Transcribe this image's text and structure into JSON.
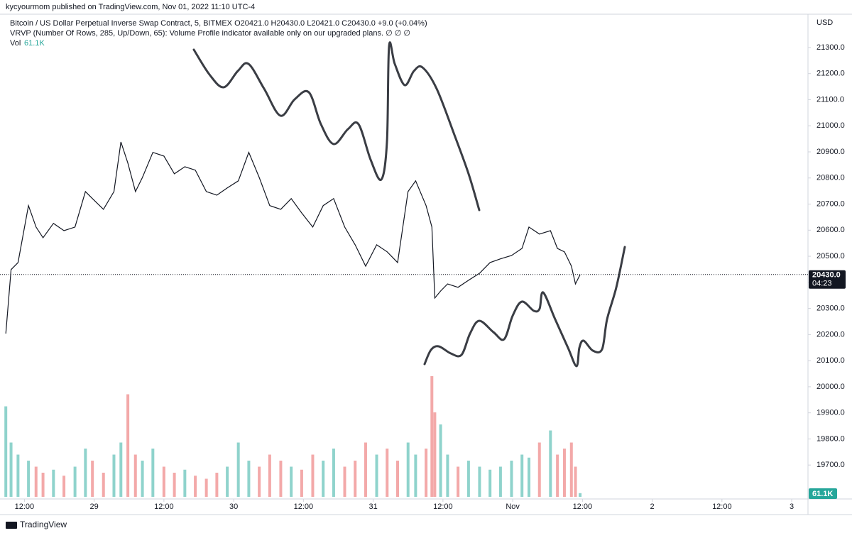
{
  "header": {
    "publisher": "kycyourmom published on TradingView.com, Nov 01, 2022 11:10 UTC-4"
  },
  "chart_data": {
    "type": "line",
    "title": "Bitcoin / US Dollar Perpetual Inverse Swap Contract, 5, BITMEX  O20421.0  H20430.0  L20421.0  C20430.0  +9.0 (+0.04%)",
    "indicator": "VRVP (Number Of Rows, 285, Up/Down, 65): Volume Profile indicator available only on our upgraded plans.  ∅  ∅  ∅",
    "currency": "USD",
    "color": "#131722",
    "x": [
      8.8,
      9.7,
      10.9,
      12.7,
      14.0,
      15.2,
      17.0,
      18.8,
      20.7,
      22.5,
      23.7,
      25.6,
      27.4,
      28.6,
      29.8,
      31.1,
      32.3,
      34.1,
      36.0,
      37.8,
      39.6,
      41.4,
      43.3,
      45.1,
      46.9,
      48.8,
      50.6,
      52.4,
      54.2,
      56.1,
      57.9,
      59.7,
      61.6,
      63.4,
      65.2,
      67.1,
      68.9,
      70.7,
      72.6,
      74.4,
      76.2,
      78.0,
      79.3,
      81.1,
      82.1,
      82.6,
      83.6,
      84.8,
      86.6,
      88.4,
      90.3,
      92.1,
      93.9,
      95.8,
      97.6,
      98.8,
      100.6,
      102.5,
      103.7,
      104.9,
      106.1,
      106.8,
      107.6
    ],
    "values": [
      20204,
      20449,
      20476,
      20694,
      20612,
      20571,
      20626,
      20598,
      20612,
      20748,
      20721,
      20680,
      20748,
      20938,
      20857,
      20748,
      20802,
      20898,
      20884,
      20816,
      20843,
      20830,
      20748,
      20734,
      20762,
      20789,
      20898,
      20802,
      20694,
      20680,
      20721,
      20666,
      20612,
      20694,
      20721,
      20612,
      20544,
      20462,
      20544,
      20517,
      20476,
      20748,
      20789,
      20694,
      20612,
      20340,
      20367,
      20394,
      20381,
      20408,
      20435,
      20476,
      20490,
      20503,
      20530,
      20612,
      20585,
      20598,
      20530,
      20517,
      20462,
      20394,
      20430
    ],
    "last_price": {
      "value": 20430,
      "label": "20430.0"
    },
    "countdown": "04:23",
    "volume": {
      "name": "Vol",
      "up_color": "#8fd3cc",
      "down_color": "#f3a9a9",
      "label_color": "#26a69a",
      "values": [
        1500,
        900,
        700,
        600,
        500,
        400,
        450,
        350,
        500,
        800,
        600,
        400,
        700,
        900,
        1700,
        700,
        600,
        800,
        500,
        400,
        450,
        350,
        300,
        400,
        500,
        900,
        600,
        500,
        700,
        600,
        500,
        450,
        700,
        600,
        800,
        500,
        600,
        900,
        700,
        800,
        600,
        900,
        700,
        800,
        2000,
        1400,
        1200,
        700,
        500,
        600,
        500,
        450,
        500,
        600,
        700,
        650,
        900,
        1100,
        700,
        800,
        900,
        500,
        61.1
      ],
      "last_label": "61.1K"
    },
    "xlim": [
      7.8,
      146.8
    ],
    "ylim": [
      19570,
      21482
    ],
    "xticks": [
      {
        "value": 12,
        "label": "12:00"
      },
      {
        "value": 24,
        "label": "29"
      },
      {
        "value": 36,
        "label": "12:00"
      },
      {
        "value": 48,
        "label": "30"
      },
      {
        "value": 60,
        "label": "12:00"
      },
      {
        "value": 72,
        "label": "31"
      },
      {
        "value": 84,
        "label": "12:00"
      },
      {
        "value": 96,
        "label": "Nov"
      },
      {
        "value": 108,
        "label": "12:00"
      },
      {
        "value": 120,
        "label": "2"
      },
      {
        "value": 132,
        "label": "12:00"
      },
      {
        "value": 144,
        "label": "3"
      }
    ],
    "yticks": [
      {
        "value": 19700,
        "label": "19700.0"
      },
      {
        "value": 19800,
        "label": "19800.0"
      },
      {
        "value": 19900,
        "label": "19900.0"
      },
      {
        "value": 20000,
        "label": "20000.0"
      },
      {
        "value": 20100,
        "label": "20100.0"
      },
      {
        "value": 20200,
        "label": "20200.0"
      },
      {
        "value": 20300,
        "label": "20300.0"
      },
      {
        "value": 20400,
        "label": "20400.0"
      },
      {
        "value": 20500,
        "label": "20500.0"
      },
      {
        "value": 20600,
        "label": "20600.0"
      },
      {
        "value": 20700,
        "label": "20700.0"
      },
      {
        "value": 20800,
        "label": "20800.0"
      },
      {
        "value": 20900,
        "label": "20900.0"
      },
      {
        "value": 21000,
        "label": "21000.0"
      },
      {
        "value": 21100,
        "label": "21100.0"
      },
      {
        "value": 21200,
        "label": "21200.0"
      },
      {
        "value": 21300,
        "label": "21300.0"
      }
    ]
  },
  "footer": {
    "brand": "TradingView"
  }
}
